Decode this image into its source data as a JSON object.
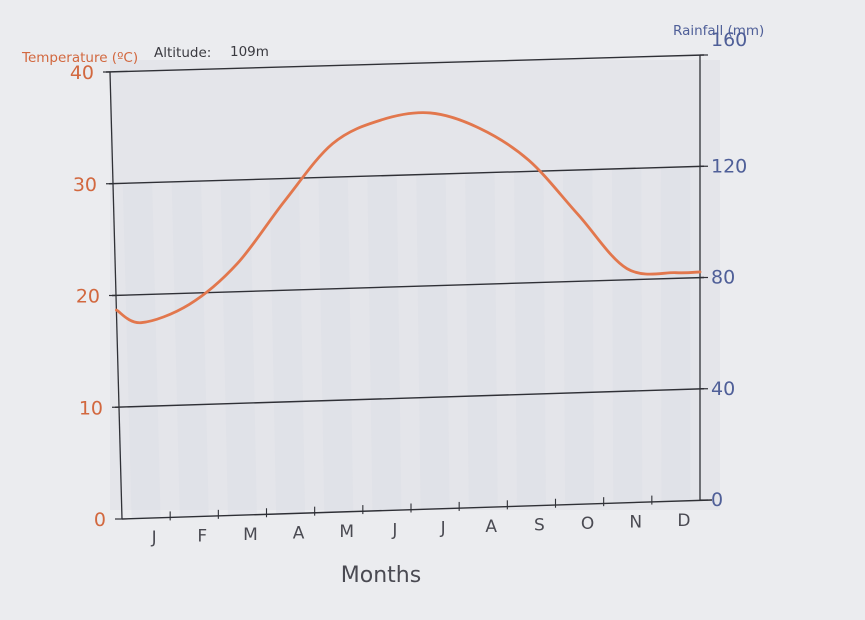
{
  "chart_data": {
    "type": "line",
    "title": "",
    "header": {
      "temperature_label": "Temperature (ºC)",
      "altitude_label": "Altitude:",
      "altitude_value": "109m",
      "rainfall_label": "Rainfall (mm)"
    },
    "xlabel": "Months",
    "categories": [
      "J",
      "F",
      "M",
      "A",
      "M",
      "J",
      "J",
      "A",
      "S",
      "O",
      "N",
      "D"
    ],
    "y_left": {
      "label": "Temperature (ºC)",
      "ylim": [
        0,
        40
      ],
      "ticks": [
        "0",
        "10",
        "20",
        "30",
        "40"
      ]
    },
    "y_right": {
      "label": "Rainfall (mm)",
      "ylim": [
        0,
        160
      ],
      "ticks": [
        "0",
        "40",
        "80",
        "120",
        "160"
      ]
    },
    "series": [
      {
        "axis": "left",
        "color": "#e2774d",
        "values": [
          17.5,
          19,
          22.5,
          28,
          33,
          35,
          35.5,
          34,
          31,
          26,
          21,
          20.5
        ]
      }
    ],
    "gridlines": "horizontal",
    "colors": {
      "temperature": "#d2683f",
      "rainfall": "#4f5f98",
      "axis": "#2b2b30"
    }
  }
}
